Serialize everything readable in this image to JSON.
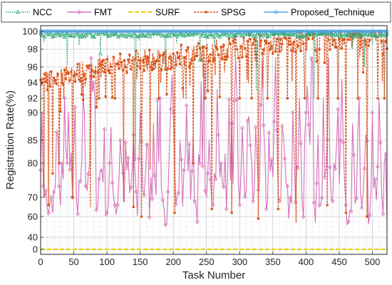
{
  "chart_data": {
    "type": "line",
    "xlabel": "Task Number",
    "ylabel": "Registration Rate(%)",
    "xlim": [
      0,
      522
    ],
    "x_ticks": [
      "0",
      "50",
      "100",
      "150",
      "200",
      "250",
      "300",
      "350",
      "400",
      "450",
      "500"
    ],
    "y_ticks": [
      {
        "value": 0,
        "label": "0"
      },
      {
        "value": 40,
        "label": "40"
      },
      {
        "value": 60,
        "label": "60"
      },
      {
        "value": 70,
        "label": "70"
      },
      {
        "value": 80,
        "label": "80"
      },
      {
        "value": 85,
        "label": "85"
      },
      {
        "value": 90,
        "label": "90"
      },
      {
        "value": 92,
        "label": "92"
      },
      {
        "value": 94,
        "label": "94"
      },
      {
        "value": 96,
        "label": "96"
      },
      {
        "value": 98,
        "label": "98"
      },
      {
        "value": 100,
        "label": "100"
      }
    ],
    "y_scale": "nonlinear (piecewise, compressed at low values)",
    "grid": true,
    "legend_position": "top",
    "series": [
      {
        "name": "NCC",
        "color": "#2aa876",
        "line_style": "dotted",
        "marker": "triangle",
        "baseline": 99.6,
        "dips": [
          [
            5,
            98.8
          ],
          [
            40,
            96.2
          ],
          [
            58,
            98.5
          ],
          [
            90,
            97.5
          ],
          [
            143,
            80.5
          ],
          [
            148,
            99.0
          ],
          [
            188,
            95.6
          ],
          [
            205,
            98.6
          ],
          [
            240,
            96.8
          ],
          [
            262,
            98.4
          ],
          [
            290,
            99.0
          ],
          [
            325,
            93.0
          ],
          [
            358,
            98.8
          ],
          [
            412,
            92.0
          ],
          [
            440,
            98.8
          ],
          [
            470,
            98.0
          ],
          [
            488,
            96.0
          ],
          [
            500,
            98.5
          ]
        ]
      },
      {
        "name": "FMT",
        "color": "#d66fb8",
        "line_style": "solid",
        "marker": "diamond",
        "values_sample": [
          [
            0,
            78
          ],
          [
            3,
            82
          ],
          [
            6,
            70
          ],
          [
            10,
            64
          ],
          [
            14,
            67
          ],
          [
            18,
            62
          ],
          [
            22,
            73
          ],
          [
            26,
            86
          ],
          [
            30,
            66
          ],
          [
            35,
            90
          ],
          [
            40,
            80
          ],
          [
            45,
            88
          ],
          [
            48,
            70
          ],
          [
            53,
            92
          ],
          [
            55,
            41
          ],
          [
            58,
            75
          ],
          [
            62,
            80
          ],
          [
            66,
            90
          ],
          [
            70,
            72
          ],
          [
            75,
            88
          ],
          [
            80,
            94
          ],
          [
            85,
            68
          ],
          [
            90,
            78
          ],
          [
            95,
            82
          ],
          [
            100,
            62
          ],
          [
            105,
            80
          ],
          [
            110,
            70
          ],
          [
            115,
            65
          ],
          [
            120,
            85
          ],
          [
            125,
            72
          ],
          [
            130,
            78
          ],
          [
            135,
            66
          ],
          [
            140,
            86
          ],
          [
            145,
            56
          ],
          [
            150,
            90
          ],
          [
            155,
            72
          ],
          [
            160,
            84
          ],
          [
            165,
            64
          ],
          [
            170,
            88
          ],
          [
            175,
            78
          ],
          [
            180,
            92
          ],
          [
            185,
            64
          ],
          [
            190,
            52
          ],
          [
            195,
            80
          ],
          [
            200,
            90
          ],
          [
            205,
            74
          ],
          [
            210,
            85
          ],
          [
            215,
            68
          ],
          [
            220,
            91
          ],
          [
            225,
            72
          ],
          [
            230,
            86
          ],
          [
            235,
            62
          ],
          [
            240,
            80
          ],
          [
            245,
            92
          ],
          [
            250,
            70
          ],
          [
            255,
            84
          ],
          [
            260,
            66
          ],
          [
            265,
            90
          ],
          [
            270,
            76
          ],
          [
            275,
            86
          ],
          [
            280,
            64
          ],
          [
            285,
            88
          ],
          [
            290,
            74
          ],
          [
            295,
            91
          ],
          [
            300,
            66
          ],
          [
            305,
            82
          ],
          [
            310,
            72
          ],
          [
            315,
            92
          ],
          [
            320,
            68
          ],
          [
            325,
            86
          ],
          [
            330,
            74
          ],
          [
            335,
            90
          ],
          [
            340,
            64
          ],
          [
            345,
            88
          ],
          [
            350,
            76
          ],
          [
            355,
            92
          ],
          [
            360,
            68
          ],
          [
            365,
            88
          ],
          [
            370,
            74
          ],
          [
            375,
            58
          ],
          [
            380,
            90
          ],
          [
            385,
            70
          ],
          [
            390,
            92
          ],
          [
            395,
            64
          ],
          [
            400,
            90
          ],
          [
            405,
            76
          ],
          [
            410,
            96.5
          ],
          [
            413,
            44
          ],
          [
            418,
            86
          ],
          [
            422,
            66
          ],
          [
            426,
            92
          ],
          [
            430,
            78
          ],
          [
            435,
            90
          ],
          [
            440,
            68
          ],
          [
            445,
            88
          ],
          [
            450,
            74
          ],
          [
            455,
            92
          ],
          [
            460,
            66
          ],
          [
            465,
            44
          ],
          [
            470,
            88
          ],
          [
            475,
            72
          ],
          [
            480,
            92
          ],
          [
            485,
            64
          ],
          [
            490,
            86
          ],
          [
            495,
            56
          ],
          [
            500,
            90
          ],
          [
            505,
            74
          ],
          [
            510,
            92
          ],
          [
            515,
            58
          ],
          [
            520,
            82
          ],
          [
            522,
            55
          ]
        ]
      },
      {
        "name": "SURF",
        "color": "#e7d400",
        "line_style": "dashed",
        "marker": "none",
        "constant": 0
      },
      {
        "name": "SPSG",
        "color": "#d95319",
        "line_style": "dash-dot",
        "marker": "square",
        "trend": [
          [
            0,
            94.2
          ],
          [
            40,
            95.2
          ],
          [
            80,
            96.0
          ],
          [
            120,
            96.6
          ],
          [
            160,
            97.0
          ],
          [
            200,
            97.3
          ],
          [
            240,
            97.8
          ],
          [
            280,
            98.3
          ],
          [
            320,
            98.8
          ],
          [
            360,
            99.0
          ],
          [
            400,
            99.3
          ],
          [
            450,
            99.5
          ],
          [
            522,
            99.6
          ]
        ],
        "dips_sample": [
          [
            5,
            70
          ],
          [
            12,
            66
          ],
          [
            18,
            77
          ],
          [
            28,
            80
          ],
          [
            35,
            92
          ],
          [
            48,
            70
          ],
          [
            62,
            92.5
          ],
          [
            75,
            65
          ],
          [
            88,
            92
          ],
          [
            98,
            92.2
          ],
          [
            112,
            92
          ],
          [
            125,
            68
          ],
          [
            140,
            65
          ],
          [
            152,
            60
          ],
          [
            165,
            78
          ],
          [
            178,
            92
          ],
          [
            190,
            92.5
          ],
          [
            202,
            62
          ],
          [
            215,
            92
          ],
          [
            230,
            80
          ],
          [
            248,
            92
          ],
          [
            258,
            64
          ],
          [
            270,
            92.2
          ],
          [
            288,
            62
          ],
          [
            300,
            92
          ],
          [
            318,
            92
          ],
          [
            328,
            58
          ],
          [
            342,
            92
          ],
          [
            358,
            64
          ],
          [
            372,
            92
          ],
          [
            385,
            54
          ],
          [
            398,
            92
          ],
          [
            418,
            92
          ],
          [
            432,
            66
          ],
          [
            448,
            92
          ],
          [
            460,
            62
          ],
          [
            478,
            92
          ],
          [
            492,
            60
          ],
          [
            508,
            92
          ],
          [
            518,
            92
          ]
        ]
      },
      {
        "name": "Proposed_Technique",
        "color": "#4fa3e0",
        "line_style": "solid",
        "marker": "circle",
        "constant": 100
      }
    ]
  }
}
